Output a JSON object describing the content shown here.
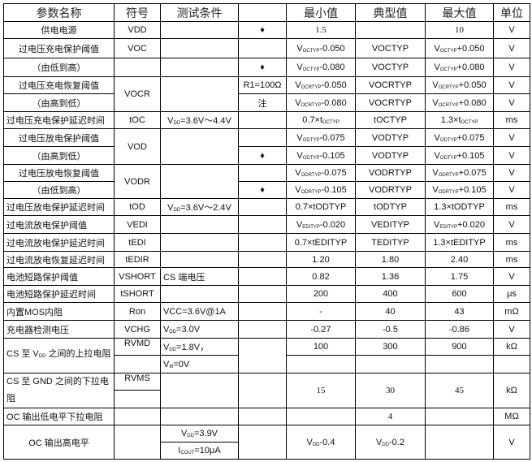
{
  "table": {
    "header": [
      "参数名称",
      "符号",
      "测试条件",
      "",
      "最小值",
      "典型值",
      "最大值",
      "单位"
    ],
    "rows": [
      [
        "供电电源",
        "VDD",
        "",
        "♦",
        "1.5",
        "",
        "10",
        "V"
      ],
      [
        "过电压充电保护阈值",
        "VOC",
        "",
        "",
        [
          "V",
          {
            "sub": "OCTYP"
          },
          "-0.050"
        ],
        "VOCTYP",
        [
          "V",
          {
            "sub": "OCTYP"
          },
          "+0.050"
        ],
        "V"
      ],
      [
        "（由低到高）",
        "",
        "",
        "♦",
        [
          "V",
          {
            "sub": "OCTYP"
          },
          "-0.080"
        ],
        "VOCTYP",
        [
          "V",
          {
            "sub": "OCTYP"
          },
          "+0.080"
        ],
        "V"
      ],
      [
        "过电压充电恢复阈值",
        "VOCR",
        "",
        "R1=100Ω",
        [
          "V",
          {
            "sub": "OCRTYP"
          },
          "-0.050"
        ],
        "VOCRTYP",
        [
          "V",
          {
            "sub": "OCRTYP"
          },
          "+0.050"
        ],
        "V"
      ],
      [
        "（由高到低）",
        null,
        null,
        "注",
        [
          "V",
          {
            "sub": "OCRTYP"
          },
          "-0.080"
        ],
        "VOCRTYP",
        [
          "V",
          {
            "sub": "OCRTYP"
          },
          "+0.080"
        ],
        "V"
      ],
      [
        "过电压充电保护延迟时间",
        "tOC",
        [
          "V",
          {
            "sub": "DD"
          },
          "=3.6V～4.4V"
        ],
        "",
        [
          "0.7×t",
          {
            "sub": "OCTYP"
          },
          ""
        ],
        "tOCTYP",
        [
          "1.3×t",
          {
            "sub": "OCTYP"
          },
          ""
        ],
        "ms"
      ],
      [
        "过电压放电保护阈值",
        "VOD",
        "",
        "",
        [
          "V",
          {
            "sub": "ODTYP"
          },
          "-0.075"
        ],
        "VODTYP",
        [
          "V",
          {
            "sub": "ODTYP"
          },
          "+0.075"
        ],
        "V"
      ],
      [
        "（由高到低）",
        null,
        null,
        "♦",
        [
          "V",
          {
            "sub": "ODTYP"
          },
          "-0.105"
        ],
        "VODTYP",
        [
          "V",
          {
            "sub": "ODTYP"
          },
          "+0.105"
        ],
        "V"
      ],
      [
        "过电压放电恢复阈值",
        "VODR",
        "",
        "",
        [
          "V",
          {
            "sub": "ODRTYP"
          },
          "-0.075"
        ],
        "VODRTYP",
        [
          "V",
          {
            "sub": "ODRTYP"
          },
          "+0.075"
        ],
        "V"
      ],
      [
        "（由低到高）",
        null,
        null,
        "♦",
        [
          "V",
          {
            "sub": "ODRTYP"
          },
          "-0.105"
        ],
        "VODRTYP",
        [
          "V",
          {
            "sub": "ODRTYP"
          },
          "+0.105"
        ],
        "V"
      ],
      [
        "过电压放电保护延迟时间",
        "tOD",
        [
          "V",
          {
            "sub": "DD"
          },
          "=3.6V～2.4V"
        ],
        "",
        "0.7×tODTYP",
        "tODTYP",
        "1.3×tODTYP",
        "ms"
      ],
      [
        "过电流放电保护阈值",
        "VEDI",
        "",
        "",
        [
          "V",
          {
            "sub": "EDITYP"
          },
          "-0.020"
        ],
        "VEDITYP",
        [
          "V",
          {
            "sub": "EDITYP"
          },
          "+0.020"
        ],
        "V"
      ],
      [
        "过电流放电保护延迟时间",
        "tEDI",
        "",
        "",
        "0.7×tEDITYP",
        "TEDITYP",
        "1.3×tEDITYP",
        "ms"
      ],
      [
        "过电流放电恢复延迟时间",
        "tEDIR",
        "",
        "",
        "1.20",
        "1.80",
        "2.40",
        "ms"
      ],
      [
        "电池短路保护阈值",
        "VSHORT",
        "CS 端电压",
        "",
        "0.82",
        "1.36",
        "1.75",
        "V"
      ],
      [
        "电池短路保护延迟时间",
        "tSHORT",
        "",
        "",
        "200",
        "400",
        "600",
        "μs"
      ],
      [
        "内置MOS内阻",
        "Ron",
        "VCC=3.6V@1A",
        "",
        "-",
        "40",
        "43",
        "mΩ"
      ],
      [
        "充电器检测电压",
        "VCHG",
        [
          "V",
          {
            "sub": "DD"
          },
          "=3.0V"
        ],
        "",
        "-0.27",
        "-0.5",
        "-0.86",
        "V"
      ],
      [
        [
          "CS 至 V",
          {
            "sub": "DD"
          },
          " 之间的上拉电阻"
        ],
        "RVMD",
        [
          "V",
          {
            "sub": "DD"
          },
          "=1.8V，"
        ],
        "",
        "100",
        "300",
        "900",
        "kΩ"
      ],
      [
        null,
        "",
        [
          "V",
          {
            "sub": "M"
          },
          "=0V"
        ],
        null,
        "",
        "",
        "",
        ""
      ],
      [
        "CS 至 GND 之间的下拉电阻",
        "RVMS",
        "",
        "",
        "15",
        "30",
        "45",
        "kΩ"
      ],
      [
        null,
        "",
        null,
        null,
        null,
        null,
        null,
        null
      ],
      [
        "OC 输出低电平下拉电阻",
        "",
        "",
        "",
        "",
        "4",
        "",
        "MΩ"
      ],
      [
        "OC 输出高电平",
        "",
        [
          "V",
          {
            "sub": "DD"
          },
          "=3.9V"
        ],
        "",
        [
          "V",
          {
            "sub": "DD"
          },
          "-0.4"
        ],
        [
          "V",
          {
            "sub": "DD"
          },
          "-0.2"
        ],
        "",
        "V"
      ],
      [
        null,
        null,
        [
          "I",
          {
            "sub": "COUT"
          },
          "=10μA"
        ],
        null,
        null,
        null,
        null,
        null
      ]
    ]
  }
}
